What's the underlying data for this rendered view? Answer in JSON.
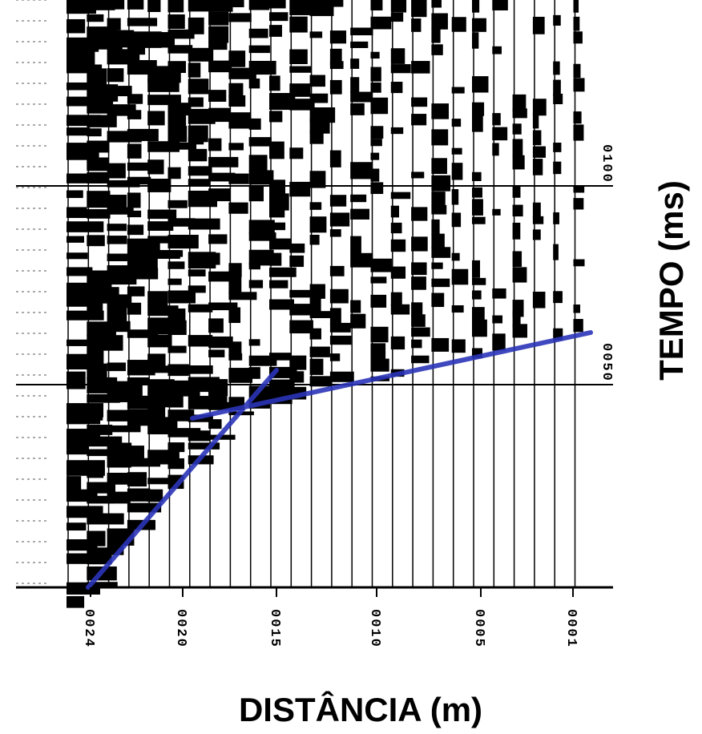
{
  "axes": {
    "x_title": "DISTÂNCIA (m)",
    "y_title": "TEMPO (ms)",
    "x_tick_labels": [
      "0024",
      "0020",
      "0015",
      "0010",
      "0005",
      "0001"
    ],
    "y_tick_labels": [
      "0100",
      "0050"
    ]
  }
}
